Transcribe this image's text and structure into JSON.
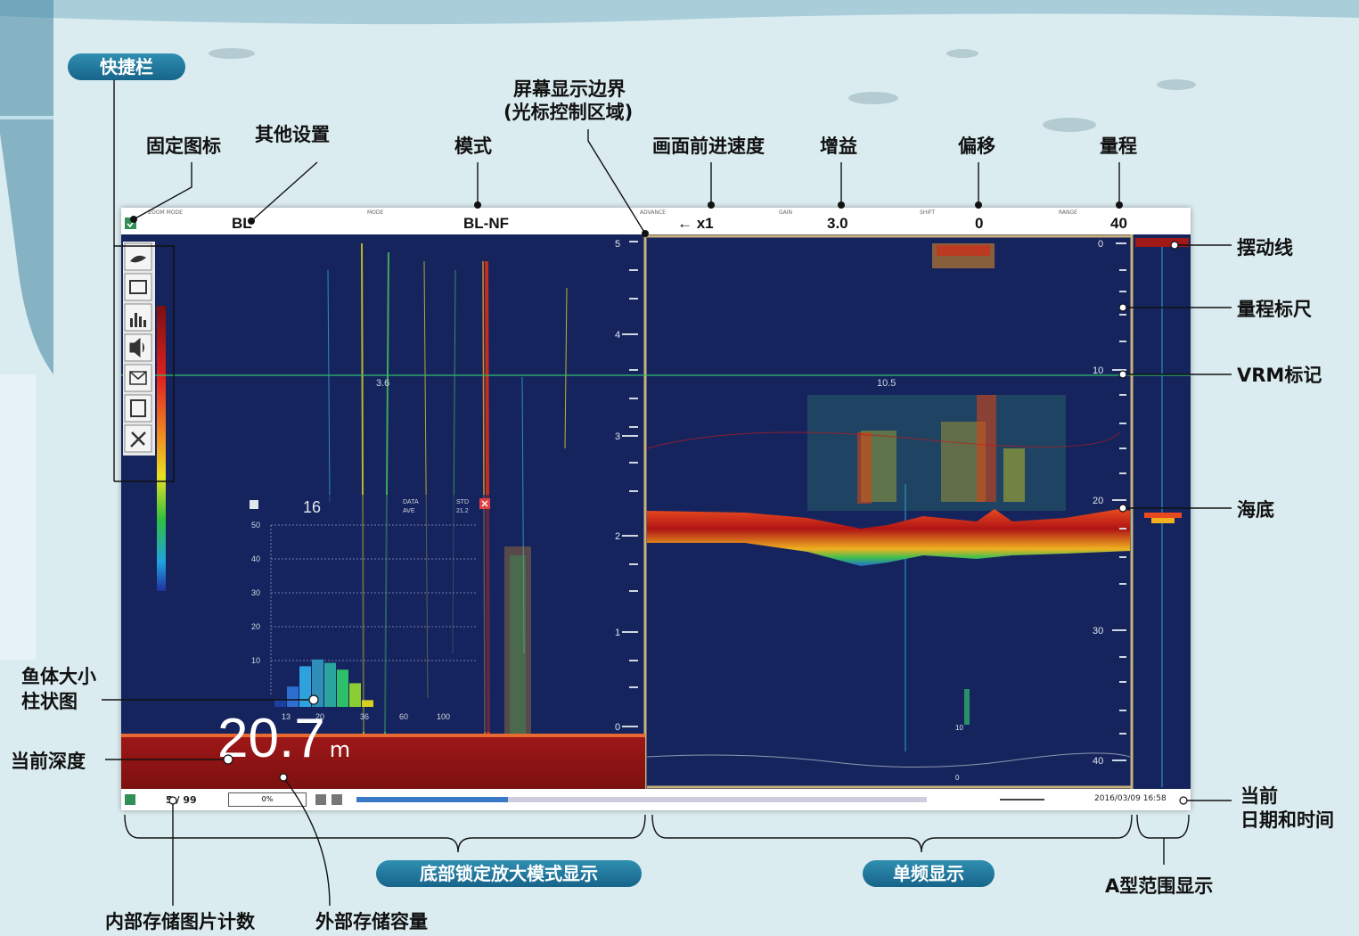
{
  "annotations": {
    "quickbar": "快捷栏",
    "fixed_icon": "固定图标",
    "other_settings": "其他设置",
    "mode": "模式",
    "screen_boundary_1": "屏幕显示边界",
    "screen_boundary_2": "(光标控制区域)",
    "advance_speed": "画面前进速度",
    "gain": "增益",
    "shift": "偏移",
    "range": "量程",
    "swing_line": "摆动线",
    "range_scale": "量程标尺",
    "vrm_marker": "VRM标记",
    "seabed": "海底",
    "fish_size_1": "鱼体大小",
    "fish_size_2": "柱状图",
    "current_depth": "当前深度",
    "current_datetime_1": "当前",
    "current_datetime_2": "日期和时间",
    "bottom_lock_zoom": "底部锁定放大模式显示",
    "single_freq": "单频显示",
    "a_scope": "A型范围显示",
    "internal_count": "内部存储图片计数",
    "external_capacity": "外部存储容量"
  },
  "topbar": {
    "zoom_mode_label": "ZOOM MODE",
    "zoom_mode_value": "BL",
    "mode_label": "MODE",
    "mode_value": "BL-NF",
    "advance_label": "ADVANCE",
    "advance_value": "← x1",
    "gain_label": "GAIN",
    "gain_value": "3.0",
    "shift_label": "SHIFT",
    "shift_value": "0",
    "range_label": "RANGE",
    "range_value": "40"
  },
  "left_panel": {
    "scale_labels": [
      "5",
      "4",
      "3",
      "2",
      "1",
      "0"
    ],
    "vrm_value": "3.6",
    "depth_value": "20.7",
    "depth_unit": "m"
  },
  "histogram": {
    "count": "16",
    "data_label": "DATA",
    "data_value": "AVE",
    "std_label": "STD",
    "std_value": "21.2",
    "y_ticks": [
      "50",
      "40",
      "30",
      "20",
      "10"
    ],
    "x_ticks": [
      "13",
      "20",
      "36",
      "60",
      "100"
    ],
    "bars": [
      2,
      6,
      12,
      14,
      13,
      11,
      7,
      2
    ],
    "bar_colors": [
      "#1a3f9e",
      "#2c6fd0",
      "#2ea2dc",
      "#2f8fb8",
      "#2aa59d",
      "#2ebf6a",
      "#8ccd33",
      "#d8d020"
    ]
  },
  "right_panel": {
    "scale_labels": [
      "0",
      "10",
      "20",
      "30",
      "40"
    ],
    "vrm_value": "10.5",
    "mini_scale": [
      "10",
      "0"
    ]
  },
  "bottombar": {
    "image_count": "5 / 99",
    "external": "0%",
    "timestamp": "2016/03/09 16:58"
  },
  "colors": {
    "echo_bg": "#16245e",
    "pill": "#17648a",
    "frame_line": "#c8b27a"
  }
}
